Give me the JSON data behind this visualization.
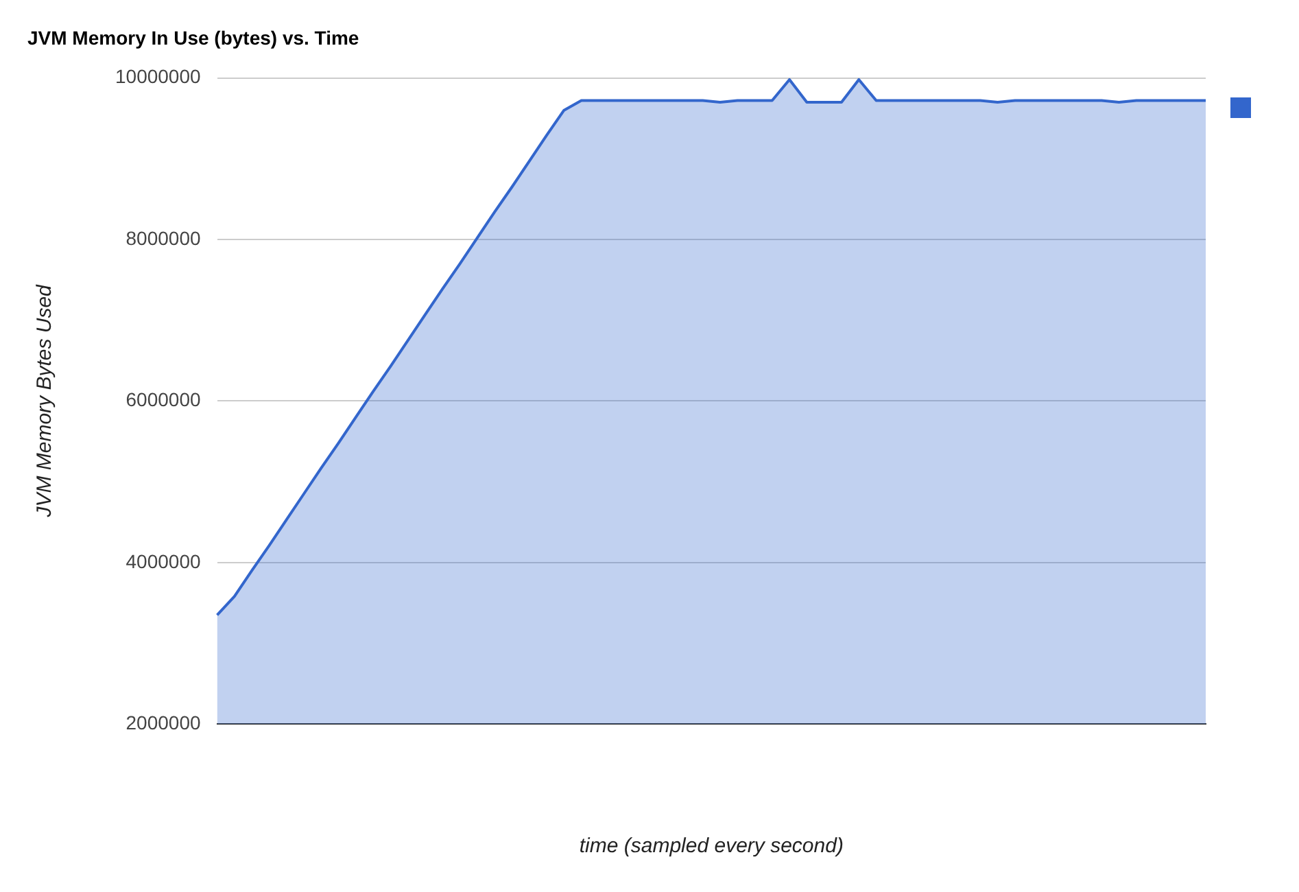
{
  "chart_data": {
    "type": "area",
    "title": "JVM Memory In Use (bytes) vs. Time",
    "xlabel": "time (sampled every second)",
    "ylabel": "JVM Memory Bytes Used",
    "categories": [
      null,
      null,
      null,
      null,
      null,
      null,
      null,
      null,
      null,
      null,
      null,
      null,
      null,
      null,
      null,
      null,
      null,
      null,
      null,
      null,
      null,
      null,
      null,
      null,
      null,
      null,
      null,
      null,
      null,
      null,
      null,
      null,
      null,
      null,
      null,
      null,
      null,
      null,
      null,
      null,
      null,
      null,
      null,
      null,
      null,
      null,
      null,
      null,
      null,
      null,
      null,
      null,
      null,
      null,
      null,
      null,
      null,
      null
    ],
    "series": [
      {
        "color": "#3366cc",
        "values": [
          3350000,
          3580000,
          3900000,
          4210000,
          4530000,
          4850000,
          5170000,
          5480000,
          5800000,
          6120000,
          6430000,
          6750000,
          7070000,
          7390000,
          7700000,
          8020000,
          8340000,
          8650000,
          8970000,
          9290000,
          9600000,
          9720000,
          9720000,
          9720000,
          9720000,
          9720000,
          9720000,
          9720000,
          9720000,
          9700000,
          9720000,
          9720000,
          9720000,
          9980000,
          9700000,
          9700000,
          9700000,
          9980000,
          9720000,
          9720000,
          9720000,
          9720000,
          9720000,
          9720000,
          9720000,
          9700000,
          9720000,
          9720000,
          9720000,
          9720000,
          9720000,
          9720000,
          9700000,
          9720000,
          9720000,
          9720000,
          9720000,
          9720000
        ]
      }
    ],
    "ylim": [
      2000000,
      10000000
    ],
    "yticks": [
      2000000,
      4000000,
      6000000,
      8000000,
      10000000
    ],
    "grid": "y",
    "marker": "none",
    "line_style": "solid"
  }
}
